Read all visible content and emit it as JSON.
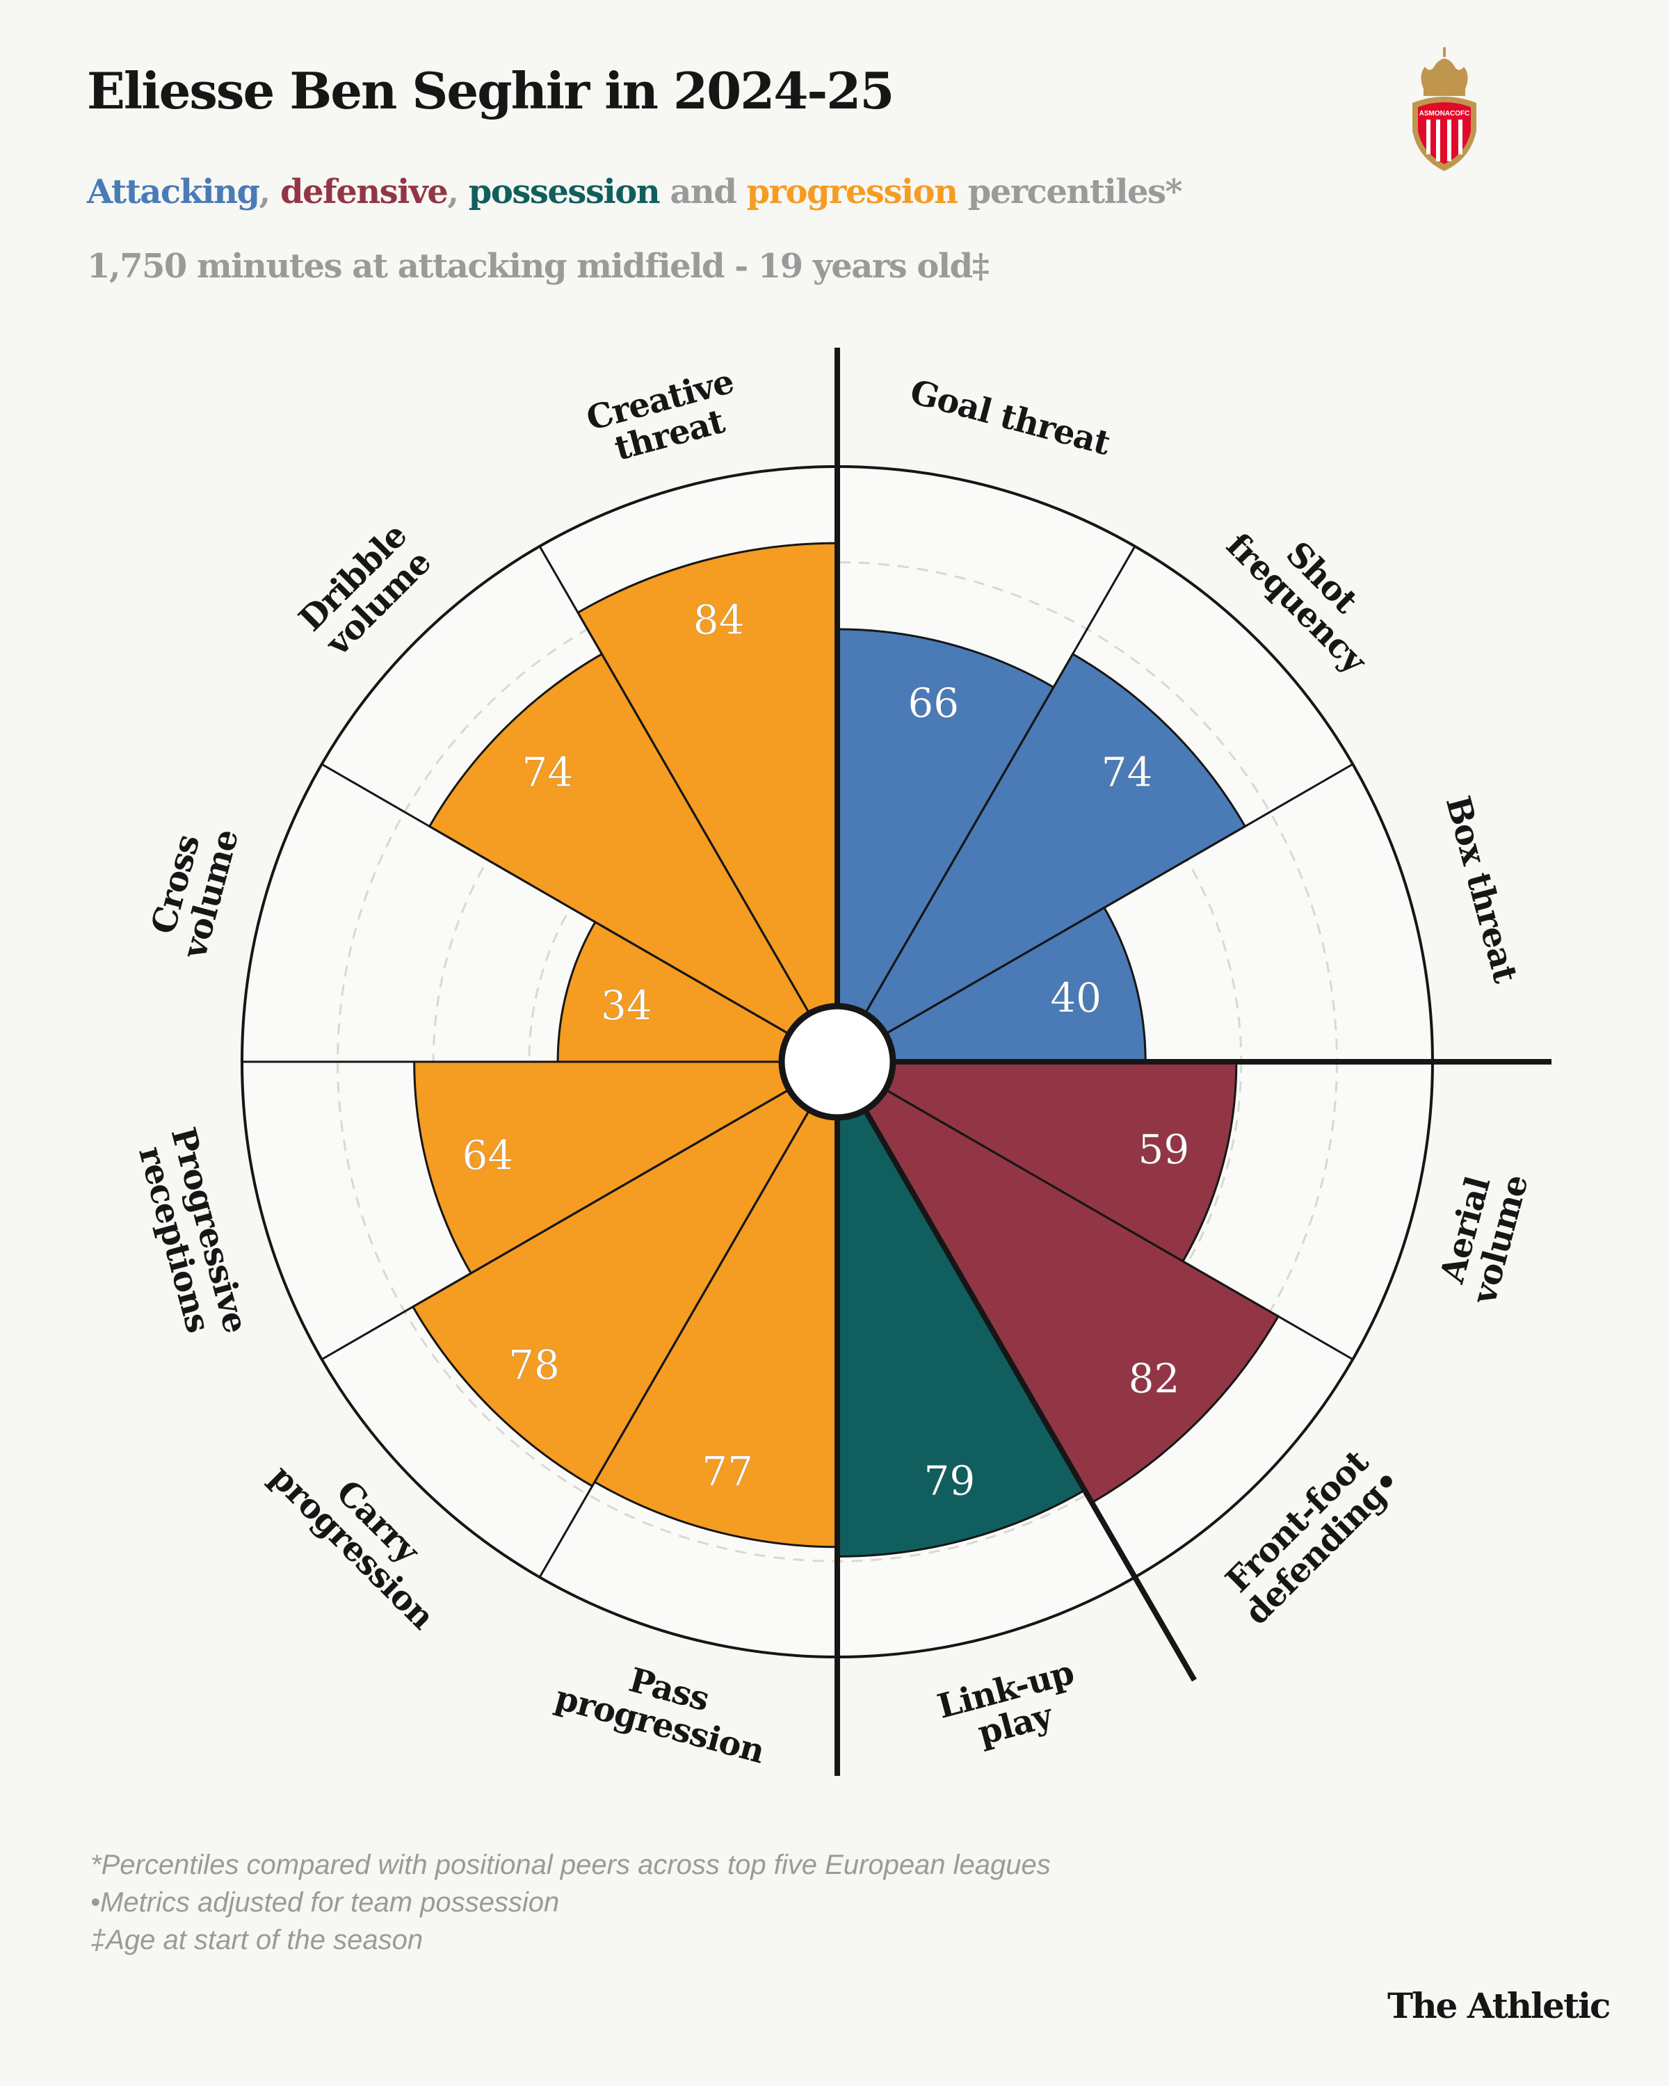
{
  "header": {
    "title": "Eliesse Ben Seghir in 2024-25",
    "subtitle_parts": {
      "attacking": "Attacking",
      "comma1": ", ",
      "defensive": "defensive",
      "comma2": ", ",
      "possession": "possession",
      "and": " and ",
      "progression": "progression",
      "rest": " percentiles*"
    },
    "meta": "1,750 minutes at attacking midfield - 19 years old‡",
    "logo_text": "ASMONACOFC"
  },
  "colors": {
    "attacking": "#4a7bb7",
    "defensive": "#923646",
    "possession": "#115e5e",
    "progression": "#f59c22",
    "background": "#f7f7f3",
    "muted": "#9a9a9a"
  },
  "chart_data": {
    "type": "polar-bar",
    "title": "Eliesse Ben Seghir in 2024-25",
    "range": [
      0,
      100
    ],
    "gridlines": [
      20,
      40,
      60,
      80,
      100
    ],
    "direction": "clockwise from top",
    "categories": [
      {
        "label": [
          "Goal threat"
        ],
        "value": 66,
        "group": "attacking"
      },
      {
        "label": [
          "Shot",
          "frequency"
        ],
        "value": 74,
        "group": "attacking"
      },
      {
        "label": [
          "Box threat"
        ],
        "value": 40,
        "group": "attacking"
      },
      {
        "label": [
          "Aerial",
          "volume"
        ],
        "value": 59,
        "group": "defensive"
      },
      {
        "label": [
          "Front-foot",
          "defending•"
        ],
        "value": 82,
        "group": "defensive"
      },
      {
        "label": [
          "Link-up",
          "play"
        ],
        "value": 79,
        "group": "possession"
      },
      {
        "label": [
          "Pass",
          "progression"
        ],
        "value": 77,
        "group": "progression"
      },
      {
        "label": [
          "Carry",
          "progression"
        ],
        "value": 78,
        "group": "progression"
      },
      {
        "label": [
          "Progressive",
          "receptions"
        ],
        "value": 64,
        "group": "progression"
      },
      {
        "label": [
          "Cross",
          "volume"
        ],
        "value": 34,
        "group": "progression"
      },
      {
        "label": [
          "Dribble",
          "volume"
        ],
        "value": 74,
        "group": "progression"
      },
      {
        "label": [
          "Creative",
          "threat"
        ],
        "value": 84,
        "group": "progression"
      }
    ]
  },
  "footer": {
    "notes": [
      "*Percentiles compared with positional peers across top five European leagues",
      "•Metrics adjusted for team possession",
      "‡Age at start of the season"
    ],
    "brand": "The Athletic"
  }
}
